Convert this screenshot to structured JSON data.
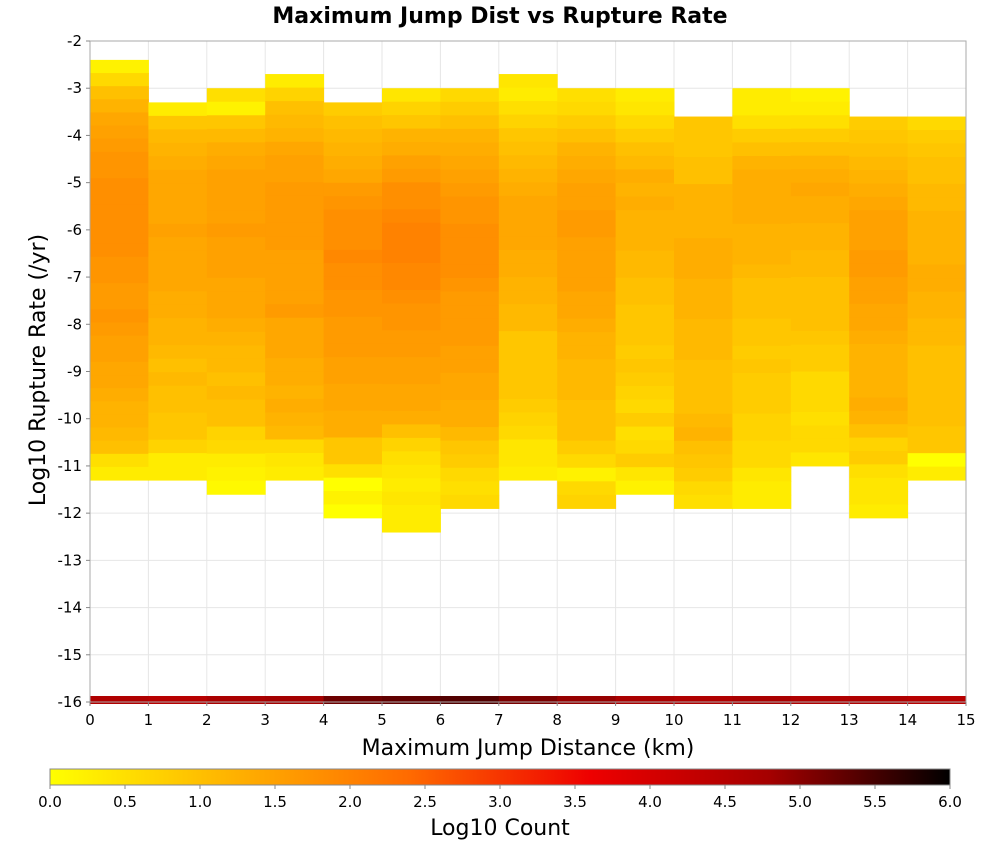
{
  "chart_data": {
    "type": "heatmap",
    "title": "Maximum Jump Dist vs Rupture Rate",
    "xlabel": "Maximum Jump Distance (km)",
    "ylabel": "Log10 Rupture Rate (/yr)",
    "xlim": [
      0,
      15
    ],
    "ylim": [
      -16,
      -2
    ],
    "x_ticks": [
      "0",
      "1",
      "2",
      "3",
      "4",
      "5",
      "6",
      "7",
      "8",
      "9",
      "10",
      "11",
      "12",
      "13",
      "14",
      "15"
    ],
    "y_ticks": [
      "-2",
      "-3",
      "-4",
      "-5",
      "-6",
      "-7",
      "-8",
      "-9",
      "-10",
      "-11",
      "-12",
      "-13",
      "-14",
      "-15",
      "-16"
    ],
    "bin_width_x": 1,
    "bin_height_y": 0.286,
    "colorbar": {
      "label": "Log10 Count",
      "min": 0.0,
      "max": 6.0,
      "ticks": [
        "0.0",
        "0.5",
        "1.0",
        "1.5",
        "2.0",
        "2.5",
        "3.0",
        "3.5",
        "4.0",
        "4.5",
        "5.0",
        "5.5",
        "6.0"
      ],
      "colors": [
        "#ffff00",
        "#ffb300",
        "#ff6a00",
        "#ee0000",
        "#a40000",
        "#000000"
      ]
    },
    "grid": true,
    "columns": [
      {
        "x0": 0,
        "ymin": -11.3,
        "ymax": -2.4,
        "values": [
          0.2,
          0.6,
          1.0,
          1.2,
          1.4,
          1.5,
          1.6,
          1.7,
          1.7,
          1.8,
          1.8,
          1.8,
          1.8,
          1.8,
          1.8,
          1.7,
          1.7,
          1.6,
          1.6,
          1.7,
          1.6,
          1.5,
          1.5,
          1.4,
          1.4,
          1.3,
          1.2,
          1.2,
          1.1,
          1.0,
          0.5,
          0.3
        ]
      },
      {
        "x0": 1,
        "ymin": -11.3,
        "ymax": -3.3,
        "values": [
          0.3,
          0.9,
          1.1,
          1.2,
          1.3,
          1.4,
          1.4,
          1.4,
          1.4,
          1.5,
          1.4,
          1.4,
          1.4,
          1.4,
          1.3,
          1.3,
          1.2,
          1.2,
          1.1,
          1.0,
          1.1,
          1.0,
          1.0,
          0.9,
          0.9,
          0.7,
          0.3,
          0.3
        ]
      },
      {
        "x0": 2,
        "ymin": -11.6,
        "ymax": -3.0,
        "values": [
          0.5,
          0.2,
          0.9,
          1.1,
          1.3,
          1.4,
          1.5,
          1.5,
          1.5,
          1.5,
          1.6,
          1.5,
          1.5,
          1.5,
          1.4,
          1.4,
          1.4,
          1.3,
          1.2,
          1.1,
          1.1,
          1.0,
          1.1,
          1.0,
          1.0,
          0.7,
          0.6,
          0.3,
          0.2,
          0.1
        ]
      },
      {
        "x0": 3,
        "ymin": -11.3,
        "ymax": -2.7,
        "values": [
          0.3,
          0.7,
          1.0,
          1.1,
          1.2,
          1.4,
          1.5,
          1.5,
          1.6,
          1.6,
          1.6,
          1.6,
          1.6,
          1.5,
          1.5,
          1.5,
          1.5,
          1.6,
          1.4,
          1.4,
          1.4,
          1.3,
          1.3,
          1.2,
          1.3,
          1.2,
          1.1,
          0.6,
          0.4,
          0.3
        ]
      },
      {
        "x0": 4,
        "ymin": -12.1,
        "ymax": -3.3,
        "values": [
          0.8,
          1.0,
          1.1,
          1.2,
          1.3,
          1.4,
          1.6,
          1.7,
          1.8,
          1.8,
          1.8,
          1.9,
          1.8,
          1.8,
          1.7,
          1.7,
          1.6,
          1.6,
          1.6,
          1.5,
          1.5,
          1.4,
          1.4,
          1.3,
          1.3,
          0.9,
          0.9,
          0.5,
          0.0,
          0.2,
          0.0
        ]
      },
      {
        "x0": 5,
        "ymin": -12.4,
        "ymax": -3.0,
        "values": [
          0.4,
          0.7,
          0.9,
          1.2,
          1.3,
          1.5,
          1.6,
          1.8,
          1.8,
          1.9,
          2.0,
          2.0,
          2.0,
          1.9,
          1.9,
          1.8,
          1.7,
          1.7,
          1.6,
          1.6,
          1.5,
          1.5,
          1.4,
          1.4,
          1.3,
          1.0,
          0.7,
          0.5,
          0.4,
          0.3,
          0.4,
          0.3,
          0.3
        ]
      },
      {
        "x0": 6,
        "ymin": -11.9,
        "ymax": -3.0,
        "values": [
          0.6,
          0.8,
          1.0,
          1.2,
          1.3,
          1.4,
          1.5,
          1.6,
          1.7,
          1.7,
          1.8,
          1.8,
          1.8,
          1.8,
          1.7,
          1.6,
          1.6,
          1.6,
          1.6,
          1.5,
          1.5,
          1.4,
          1.4,
          1.3,
          1.3,
          1.1,
          0.9,
          0.8,
          0.6,
          0.5,
          0.6
        ]
      },
      {
        "x0": 7,
        "ymin": -11.3,
        "ymax": -2.7,
        "values": [
          0.4,
          0.3,
          0.5,
          0.7,
          0.9,
          1.0,
          1.1,
          1.2,
          1.3,
          1.4,
          1.4,
          1.4,
          1.4,
          1.3,
          1.3,
          1.2,
          1.2,
          1.1,
          1.1,
          0.9,
          0.9,
          0.9,
          0.9,
          0.9,
          0.8,
          0.7,
          0.6,
          0.4,
          0.4,
          0.3
        ]
      },
      {
        "x0": 8,
        "ymin": -11.9,
        "ymax": -3.0,
        "values": [
          0.5,
          0.6,
          0.8,
          1.0,
          1.2,
          1.3,
          1.4,
          1.5,
          1.5,
          1.6,
          1.6,
          1.5,
          1.5,
          1.5,
          1.5,
          1.4,
          1.4,
          1.3,
          1.2,
          1.2,
          1.1,
          1.1,
          1.1,
          1.0,
          1.0,
          1.0,
          0.8,
          0.6,
          0.2,
          0.6,
          0.7
        ]
      },
      {
        "x0": 9,
        "ymin": -11.6,
        "ymax": -3.0,
        "values": [
          0.3,
          0.4,
          0.6,
          0.8,
          1.0,
          1.1,
          1.3,
          1.2,
          1.3,
          1.2,
          1.2,
          1.2,
          1.1,
          1.1,
          1.0,
          1.0,
          0.9,
          0.9,
          0.9,
          0.8,
          0.9,
          0.8,
          0.7,
          0.6,
          0.8,
          0.5,
          0.6,
          0.8,
          0.4,
          0.2
        ]
      },
      {
        "x0": 10,
        "ymin": -11.9,
        "ymax": -3.6,
        "values": [
          0.9,
          0.9,
          0.9,
          1.0,
          1.0,
          1.2,
          1.2,
          1.2,
          1.2,
          1.3,
          1.3,
          1.3,
          1.2,
          1.2,
          1.2,
          1.1,
          1.1,
          1.1,
          1.0,
          1.0,
          1.0,
          1.0,
          1.1,
          1.2,
          1.0,
          0.9,
          0.8,
          0.6,
          0.5
        ]
      },
      {
        "x0": 11,
        "ymin": -11.9,
        "ymax": -3.0,
        "values": [
          0.3,
          0.3,
          0.5,
          0.8,
          1.0,
          1.2,
          1.3,
          1.3,
          1.3,
          1.3,
          1.2,
          1.2,
          1.2,
          1.1,
          1.0,
          1.0,
          1.0,
          0.9,
          0.9,
          0.8,
          0.9,
          0.8,
          0.8,
          0.8,
          0.7,
          0.7,
          0.6,
          0.6,
          0.4,
          0.3,
          0.3
        ]
      },
      {
        "x0": 12,
        "ymin": -11.0,
        "ymax": -3.0,
        "values": [
          0.2,
          0.3,
          0.5,
          0.8,
          1.0,
          1.2,
          1.3,
          1.4,
          1.3,
          1.3,
          1.2,
          1.2,
          1.1,
          1.1,
          1.0,
          1.0,
          1.0,
          1.0,
          0.9,
          0.8,
          0.8,
          0.6,
          0.6,
          0.6,
          0.5,
          0.6,
          0.6,
          0.4
        ]
      },
      {
        "x0": 13,
        "ymin": -12.1,
        "ymax": -3.6,
        "values": [
          0.8,
          0.9,
          1.0,
          1.1,
          1.2,
          1.3,
          1.4,
          1.5,
          1.5,
          1.5,
          1.6,
          1.6,
          1.5,
          1.5,
          1.4,
          1.4,
          1.3,
          1.2,
          1.2,
          1.2,
          1.2,
          1.3,
          1.2,
          1.0,
          0.7,
          0.8,
          0.5,
          0.4,
          0.4,
          0.3
        ]
      },
      {
        "x0": 14,
        "ymin": -11.3,
        "ymax": -3.6,
        "values": [
          0.6,
          0.8,
          0.9,
          1.0,
          1.0,
          1.1,
          1.1,
          1.2,
          1.2,
          1.2,
          1.2,
          1.3,
          1.3,
          1.2,
          1.2,
          1.1,
          1.1,
          1.0,
          1.0,
          1.0,
          1.0,
          1.0,
          1.0,
          0.9,
          0.9,
          0.0,
          0.3
        ]
      }
    ],
    "bottom_strip": {
      "y": -16,
      "values": [
        4.6,
        4.5,
        4.7,
        4.8,
        5.2,
        5.3,
        5.4,
        5.1,
        4.9,
        4.7,
        4.6,
        4.7,
        4.6,
        4.6,
        4.5
      ]
    }
  }
}
